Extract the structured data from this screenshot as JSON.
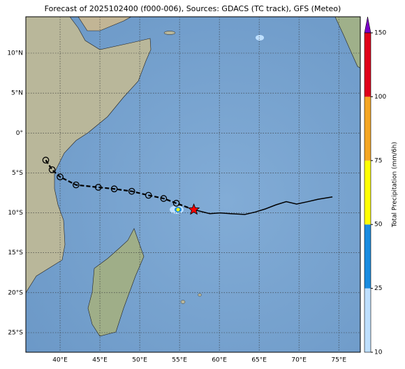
{
  "chart_data": {
    "type": "map",
    "title": "Forecast of 2025102400 (f000-006), Sources: GDACS (TC track), GFS (Meteo)",
    "xlim": [
      35.7,
      77.7
    ],
    "ylim": [
      -27.45,
      14.55
    ],
    "xticks": [
      {
        "value": 40,
        "label": "40°E"
      },
      {
        "value": 45,
        "label": "45°E"
      },
      {
        "value": 50,
        "label": "50°E"
      },
      {
        "value": 55,
        "label": "55°E"
      },
      {
        "value": 60,
        "label": "60°E"
      },
      {
        "value": 65,
        "label": "65°E"
      },
      {
        "value": 70,
        "label": "70°E"
      },
      {
        "value": 75,
        "label": "75°E"
      }
    ],
    "yticks": [
      {
        "value": 10,
        "label": "10°N"
      },
      {
        "value": 5,
        "label": "5°N"
      },
      {
        "value": 0,
        "label": "0°"
      },
      {
        "value": -5,
        "label": "5°S"
      },
      {
        "value": -10,
        "label": "10°S"
      },
      {
        "value": -15,
        "label": "15°S"
      },
      {
        "value": -20,
        "label": "20°S"
      },
      {
        "value": -25,
        "label": "25°S"
      }
    ],
    "grid": true,
    "gdacs_track": {
      "color": "#000000",
      "lon": [
        38.2,
        39.0,
        40.0,
        42.0,
        44.8,
        46.8,
        49.0,
        51.1,
        53.0,
        54.6
      ],
      "lat": [
        -3.4,
        -4.6,
        -5.5,
        -6.5,
        -6.8,
        -7.0,
        -7.3,
        -7.8,
        -8.2,
        -8.8
      ]
    },
    "current_position": {
      "color": "#ff0000",
      "lon": 56.8,
      "lat": -9.6
    },
    "gfs_track": {
      "color": "#000000",
      "lon": [
        56.8,
        58.8,
        60.1,
        61.4,
        63.2,
        64.5,
        65.8,
        67.1,
        68.4,
        69.7,
        71.1,
        72.4,
        74.2
      ],
      "lat": [
        -9.6,
        -10.1,
        -10.0,
        -10.1,
        -10.2,
        -9.9,
        -9.5,
        -9.0,
        -8.6,
        -8.9,
        -8.6,
        -8.3,
        -8.0
      ]
    },
    "colorbar": {
      "label": "Total Precipitation (mm/6h)",
      "ticks": [
        10,
        25,
        50,
        75,
        100,
        150
      ],
      "colors": [
        "#bfe0ff",
        "#1a8ce0",
        "#ffff00",
        "#f5a623",
        "#e0001a"
      ],
      "extend_color": "#7b00c8"
    }
  }
}
